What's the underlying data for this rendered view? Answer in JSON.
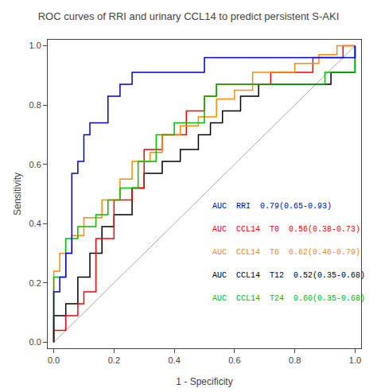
{
  "chart_data": {
    "type": "line",
    "title": "ROC curves of RRI and urinary CCL14 to predict persistent S-AKI",
    "xlabel": "1 - Specificity",
    "ylabel": "Sensitivity",
    "xlim": [
      -0.02,
      1.02
    ],
    "ylim": [
      -0.02,
      1.02
    ],
    "xticks": [
      {
        "value": 0.0,
        "label": "0.0"
      },
      0.2,
      0.4,
      0.6,
      0.8,
      {
        "value": 1.0,
        "label": "1.0"
      }
    ],
    "yticks": [
      {
        "value": 0.0,
        "label": "0.0"
      },
      0.2,
      0.4,
      0.6,
      0.8,
      {
        "value": 1.0,
        "label": "1.0"
      }
    ],
    "grid": false,
    "series": [
      {
        "color": "#AAAAAA",
        "x": [
          0,
          1
        ],
        "values": [
          0,
          1
        ]
      },
      {
        "color": "#000000",
        "x": [
          0.0,
          0.0,
          0.04,
          0.04,
          0.08,
          0.08,
          0.12,
          0.12,
          0.16,
          0.16,
          0.2,
          0.2,
          0.26,
          0.26,
          0.3,
          0.3,
          0.36,
          0.36,
          0.42,
          0.42,
          0.48,
          0.48,
          0.52,
          0.52,
          0.56,
          0.56,
          0.62,
          0.62,
          0.68,
          0.68,
          0.74,
          0.74,
          0.8,
          0.8,
          0.86,
          0.86,
          0.92,
          0.92,
          1.0,
          1.0
        ],
        "values": [
          0.0,
          0.09,
          0.09,
          0.13,
          0.13,
          0.22,
          0.22,
          0.3,
          0.3,
          0.39,
          0.39,
          0.43,
          0.43,
          0.52,
          0.52,
          0.57,
          0.57,
          0.61,
          0.61,
          0.65,
          0.65,
          0.7,
          0.7,
          0.74,
          0.74,
          0.78,
          0.78,
          0.83,
          0.83,
          0.87,
          0.87,
          0.87,
          0.87,
          0.87,
          0.87,
          0.87,
          0.87,
          0.91,
          0.91,
          1.0
        ]
      },
      {
        "color": "#FF0000",
        "x": [
          0.0,
          0.0,
          0.04,
          0.04,
          0.08,
          0.08,
          0.1,
          0.1,
          0.14,
          0.14,
          0.2,
          0.2,
          0.26,
          0.26,
          0.3,
          0.3,
          0.36,
          0.36,
          0.44,
          0.44,
          0.5,
          0.5,
          0.54,
          0.54,
          0.6,
          0.6,
          0.66,
          0.66,
          0.72,
          0.72,
          0.8,
          0.8,
          0.86,
          0.86,
          0.92,
          0.92,
          0.96,
          0.96,
          1.0,
          1.0
        ],
        "values": [
          0.0,
          0.04,
          0.04,
          0.09,
          0.09,
          0.13,
          0.13,
          0.17,
          0.17,
          0.35,
          0.35,
          0.48,
          0.48,
          0.52,
          0.52,
          0.65,
          0.65,
          0.7,
          0.7,
          0.78,
          0.78,
          0.83,
          0.83,
          0.87,
          0.87,
          0.87,
          0.87,
          0.87,
          0.87,
          0.91,
          0.91,
          0.91,
          0.91,
          0.96,
          0.96,
          0.96,
          0.96,
          1.0,
          1.0,
          1.0
        ]
      },
      {
        "color": "#FF8C00",
        "x": [
          0.0,
          0.0,
          0.02,
          0.02,
          0.06,
          0.06,
          0.1,
          0.1,
          0.16,
          0.16,
          0.22,
          0.22,
          0.26,
          0.26,
          0.32,
          0.32,
          0.36,
          0.36,
          0.42,
          0.42,
          0.48,
          0.48,
          0.54,
          0.54,
          0.6,
          0.6,
          0.66,
          0.66,
          0.72,
          0.72,
          0.8,
          0.8,
          0.88,
          0.88,
          0.94,
          0.94,
          1.0,
          1.0
        ],
        "values": [
          0.0,
          0.24,
          0.24,
          0.3,
          0.3,
          0.36,
          0.36,
          0.42,
          0.42,
          0.48,
          0.48,
          0.55,
          0.55,
          0.61,
          0.61,
          0.64,
          0.64,
          0.7,
          0.7,
          0.73,
          0.73,
          0.76,
          0.76,
          0.82,
          0.82,
          0.85,
          0.85,
          0.91,
          0.91,
          0.91,
          0.91,
          0.94,
          0.94,
          0.97,
          0.97,
          1.0,
          1.0,
          1.0
        ]
      },
      {
        "color": "#00BB00",
        "x": [
          0.0,
          0.0,
          0.04,
          0.04,
          0.08,
          0.08,
          0.14,
          0.14,
          0.18,
          0.18,
          0.22,
          0.22,
          0.28,
          0.28,
          0.34,
          0.34,
          0.4,
          0.4,
          0.5,
          0.5,
          0.54,
          0.54,
          0.6,
          0.6,
          0.66,
          0.66,
          0.9,
          0.9,
          0.96,
          0.96,
          1.0,
          1.0
        ],
        "values": [
          0.0,
          0.22,
          0.22,
          0.35,
          0.35,
          0.39,
          0.39,
          0.43,
          0.43,
          0.48,
          0.48,
          0.52,
          0.52,
          0.61,
          0.61,
          0.7,
          0.7,
          0.74,
          0.74,
          0.83,
          0.83,
          0.87,
          0.87,
          0.87,
          0.87,
          0.87,
          0.87,
          0.91,
          0.91,
          0.91,
          0.91,
          1.0
        ]
      },
      {
        "color": "#0000CC",
        "x": [
          0.0,
          0.0,
          0.02,
          0.02,
          0.04,
          0.04,
          0.06,
          0.06,
          0.08,
          0.08,
          0.1,
          0.1,
          0.12,
          0.12,
          0.18,
          0.18,
          0.22,
          0.22,
          0.26,
          0.26,
          0.4,
          0.4,
          0.5,
          0.5,
          1.0,
          1.0
        ],
        "values": [
          0.0,
          0.17,
          0.17,
          0.22,
          0.22,
          0.3,
          0.3,
          0.57,
          0.57,
          0.61,
          0.61,
          0.7,
          0.7,
          0.74,
          0.74,
          0.83,
          0.83,
          0.87,
          0.87,
          0.91,
          0.91,
          0.91,
          0.91,
          0.96,
          0.96,
          1.0
        ]
      }
    ],
    "annotations": [
      {
        "text": "AUC  RRI  0.79(0.65-0.93)",
        "color": "#0000CC"
      },
      {
        "text": "AUC  CCL14  T0  0.56(0.38-0.73)",
        "color": "#FF0000"
      },
      {
        "text": "AUC  CCL14  T6  0.62(0.46-0.79)",
        "color": "#FF8C00"
      },
      {
        "text": "AUC  CCL14  T12  0.52(0.35-0.68)",
        "color": "#000000"
      },
      {
        "text": "AUC  CCL14  T24  0.60(0.35-0.68)",
        "color": "#00BB00"
      }
    ]
  }
}
